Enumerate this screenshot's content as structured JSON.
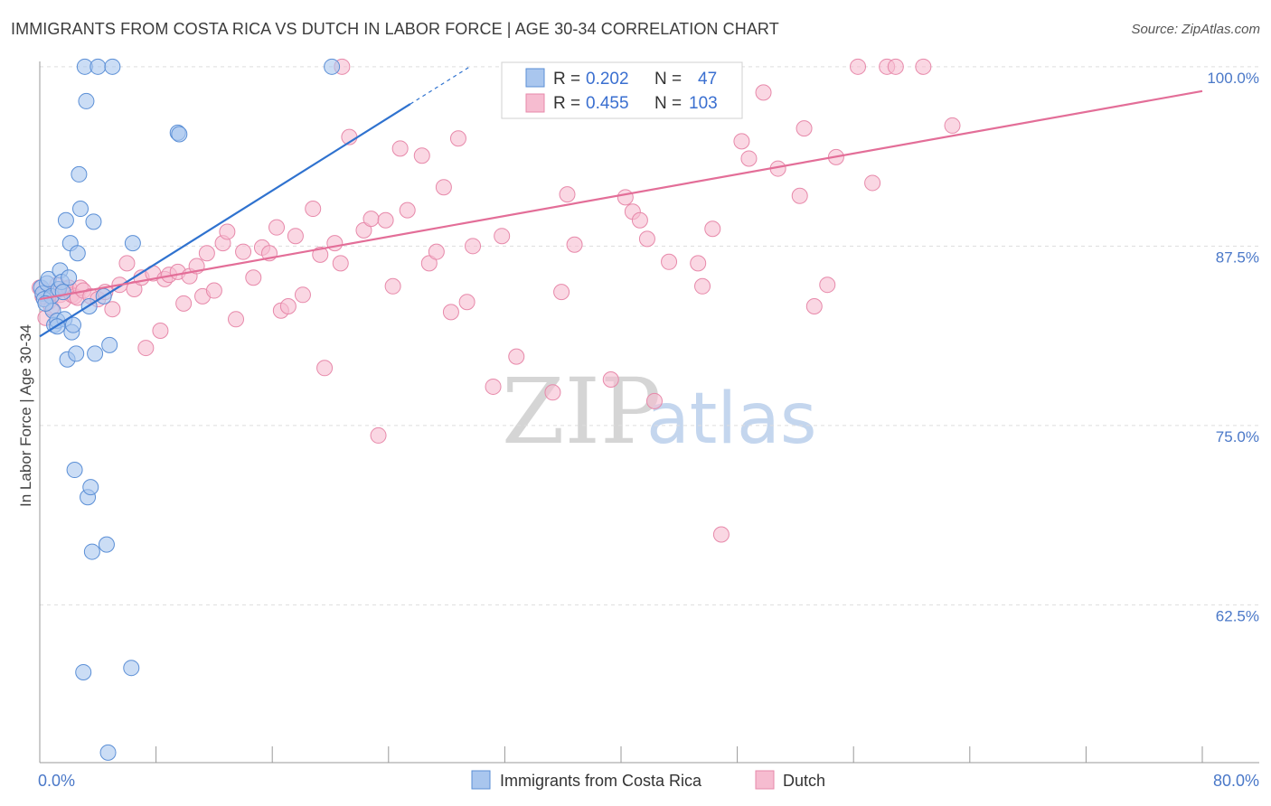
{
  "title": "IMMIGRANTS FROM COSTA RICA VS DUTCH IN LABOR FORCE | AGE 30-34 CORRELATION CHART",
  "source": "Source: ZipAtlas.com",
  "watermark": {
    "zip": "ZIP",
    "atlas": "atlas"
  },
  "colors": {
    "blue_fill": "#a9c6ee",
    "blue_stroke": "#5b8fd6",
    "blue_line": "#2f72cf",
    "pink_fill": "#f6bcd0",
    "pink_stroke": "#e789aa",
    "pink_line": "#e36e98",
    "grid": "#dddddd",
    "axis": "#999999"
  },
  "legend": {
    "r_label": "R =",
    "n_label": "N =",
    "series": [
      {
        "r": "0.202",
        "n": "47"
      },
      {
        "r": "0.455",
        "n": "103"
      }
    ]
  },
  "bottom_legend": [
    "Immigrants from Costa Rica",
    "Dutch"
  ],
  "chart_data": {
    "type": "scatter",
    "title": "IMMIGRANTS FROM COSTA RICA VS DUTCH IN LABOR FORCE | AGE 30-34 CORRELATION CHART",
    "xlabel": "",
    "ylabel": "In Labor Force | Age 30-34",
    "xlim": [
      0,
      80
    ],
    "ylim": [
      51.5,
      101.5
    ],
    "x_tick_labels": [
      "0.0%",
      "80.0%"
    ],
    "y_ticks": [
      62.5,
      75.0,
      87.5,
      100.0
    ],
    "y_tick_labels": [
      "62.5%",
      "75.0%",
      "87.5%",
      "100.0%"
    ],
    "grid": true,
    "legend_position": "top-center",
    "series": [
      {
        "name": "Immigrants from Costa Rica",
        "r": 0.202,
        "n": 47,
        "trend": {
          "x0": 0,
          "y0": 81.2,
          "x1": 25.5,
          "y1": 97.4,
          "dash_to_x": 29.5
        },
        "points": [
          [
            0.1,
            84.6
          ],
          [
            0.2,
            84.2
          ],
          [
            0.3,
            83.8
          ],
          [
            0.5,
            84.9
          ],
          [
            0.6,
            85.2
          ],
          [
            0.8,
            84.0
          ],
          [
            0.9,
            83.0
          ],
          [
            1.0,
            82.0
          ],
          [
            1.2,
            82.3
          ],
          [
            1.3,
            84.5
          ],
          [
            1.4,
            85.8
          ],
          [
            1.5,
            85.0
          ],
          [
            1.6,
            84.3
          ],
          [
            1.7,
            82.4
          ],
          [
            1.8,
            89.3
          ],
          [
            1.9,
            79.6
          ],
          [
            2.0,
            85.3
          ],
          [
            2.1,
            87.7
          ],
          [
            2.2,
            81.5
          ],
          [
            2.3,
            82.0
          ],
          [
            2.4,
            71.9
          ],
          [
            2.5,
            80.0
          ],
          [
            2.6,
            87.0
          ],
          [
            2.7,
            92.5
          ],
          [
            2.8,
            90.1
          ],
          [
            3.0,
            57.8
          ],
          [
            3.1,
            100.0
          ],
          [
            3.2,
            97.6
          ],
          [
            3.3,
            70.0
          ],
          [
            3.4,
            83.3
          ],
          [
            3.5,
            70.7
          ],
          [
            3.6,
            66.2
          ],
          [
            3.7,
            89.2
          ],
          [
            3.8,
            80.0
          ],
          [
            4.0,
            100.0
          ],
          [
            4.4,
            84.0
          ],
          [
            4.6,
            66.7
          ],
          [
            4.7,
            52.2
          ],
          [
            4.8,
            80.6
          ],
          [
            5.0,
            100.0
          ],
          [
            6.3,
            58.1
          ],
          [
            6.4,
            87.7
          ],
          [
            9.5,
            95.4
          ],
          [
            9.6,
            95.3
          ],
          [
            20.1,
            100.0
          ],
          [
            1.2,
            81.9
          ],
          [
            0.4,
            83.5
          ]
        ]
      },
      {
        "name": "Dutch",
        "r": 0.455,
        "n": 103,
        "trend": {
          "x0": 0,
          "y0": 83.8,
          "x1": 80,
          "y1": 98.3
        },
        "points": [
          [
            0.2,
            84.0
          ],
          [
            0.4,
            82.5
          ],
          [
            0.6,
            83.6
          ],
          [
            0.8,
            83.2
          ],
          [
            1.0,
            84.2
          ],
          [
            1.2,
            84.8
          ],
          [
            1.4,
            84.1
          ],
          [
            1.6,
            83.7
          ],
          [
            1.8,
            84.5
          ],
          [
            2.0,
            84.6
          ],
          [
            2.2,
            84.1
          ],
          [
            2.4,
            84.0
          ],
          [
            2.6,
            83.9
          ],
          [
            2.8,
            84.6
          ],
          [
            3.0,
            84.4
          ],
          [
            3.5,
            84.0
          ],
          [
            4.0,
            83.8
          ],
          [
            4.5,
            84.3
          ],
          [
            5.0,
            83.1
          ],
          [
            5.5,
            84.8
          ],
          [
            6.0,
            86.3
          ],
          [
            6.5,
            84.5
          ],
          [
            7.0,
            85.3
          ],
          [
            7.3,
            80.4
          ],
          [
            7.8,
            85.6
          ],
          [
            8.3,
            81.6
          ],
          [
            8.6,
            85.2
          ],
          [
            8.9,
            85.5
          ],
          [
            9.5,
            85.7
          ],
          [
            9.9,
            83.5
          ],
          [
            10.3,
            85.4
          ],
          [
            10.8,
            86.1
          ],
          [
            11.2,
            84.0
          ],
          [
            11.5,
            87.0
          ],
          [
            12.0,
            84.4
          ],
          [
            12.6,
            87.7
          ],
          [
            12.9,
            88.5
          ],
          [
            13.5,
            82.4
          ],
          [
            14.0,
            87.1
          ],
          [
            14.7,
            85.3
          ],
          [
            15.3,
            87.4
          ],
          [
            15.8,
            87.0
          ],
          [
            16.3,
            88.8
          ],
          [
            16.6,
            83.0
          ],
          [
            17.1,
            83.3
          ],
          [
            17.6,
            88.2
          ],
          [
            18.1,
            84.1
          ],
          [
            18.8,
            90.1
          ],
          [
            19.3,
            86.9
          ],
          [
            19.6,
            79.0
          ],
          [
            20.3,
            87.7
          ],
          [
            20.7,
            86.3
          ],
          [
            21.3,
            95.1
          ],
          [
            22.3,
            88.6
          ],
          [
            22.8,
            89.4
          ],
          [
            23.3,
            74.3
          ],
          [
            23.8,
            89.3
          ],
          [
            24.3,
            84.7
          ],
          [
            24.8,
            94.3
          ],
          [
            25.3,
            90.0
          ],
          [
            26.3,
            93.8
          ],
          [
            26.8,
            86.3
          ],
          [
            27.3,
            87.1
          ],
          [
            27.8,
            91.6
          ],
          [
            28.3,
            82.9
          ],
          [
            28.8,
            95.0
          ],
          [
            29.4,
            83.6
          ],
          [
            29.8,
            87.5
          ],
          [
            31.2,
            77.7
          ],
          [
            31.8,
            88.2
          ],
          [
            32.8,
            79.8
          ],
          [
            35.3,
            77.3
          ],
          [
            35.9,
            84.3
          ],
          [
            36.3,
            91.1
          ],
          [
            36.8,
            87.6
          ],
          [
            39.3,
            78.2
          ],
          [
            40.3,
            90.9
          ],
          [
            40.8,
            89.9
          ],
          [
            41.3,
            89.3
          ],
          [
            41.8,
            88.0
          ],
          [
            42.3,
            76.7
          ],
          [
            43.3,
            86.4
          ],
          [
            45.3,
            86.3
          ],
          [
            45.6,
            84.7
          ],
          [
            46.3,
            88.7
          ],
          [
            46.9,
            67.4
          ],
          [
            48.3,
            94.8
          ],
          [
            48.8,
            93.6
          ],
          [
            49.8,
            98.2
          ],
          [
            50.8,
            92.9
          ],
          [
            52.3,
            91.0
          ],
          [
            52.6,
            95.7
          ],
          [
            53.3,
            83.3
          ],
          [
            54.2,
            84.8
          ],
          [
            54.8,
            93.7
          ],
          [
            56.3,
            100.0
          ],
          [
            57.3,
            91.9
          ],
          [
            58.3,
            100.0
          ],
          [
            58.9,
            100.0
          ],
          [
            60.8,
            100.0
          ],
          [
            62.8,
            95.9
          ],
          [
            0.0,
            84.6
          ],
          [
            20.8,
            100.0
          ]
        ]
      }
    ]
  }
}
